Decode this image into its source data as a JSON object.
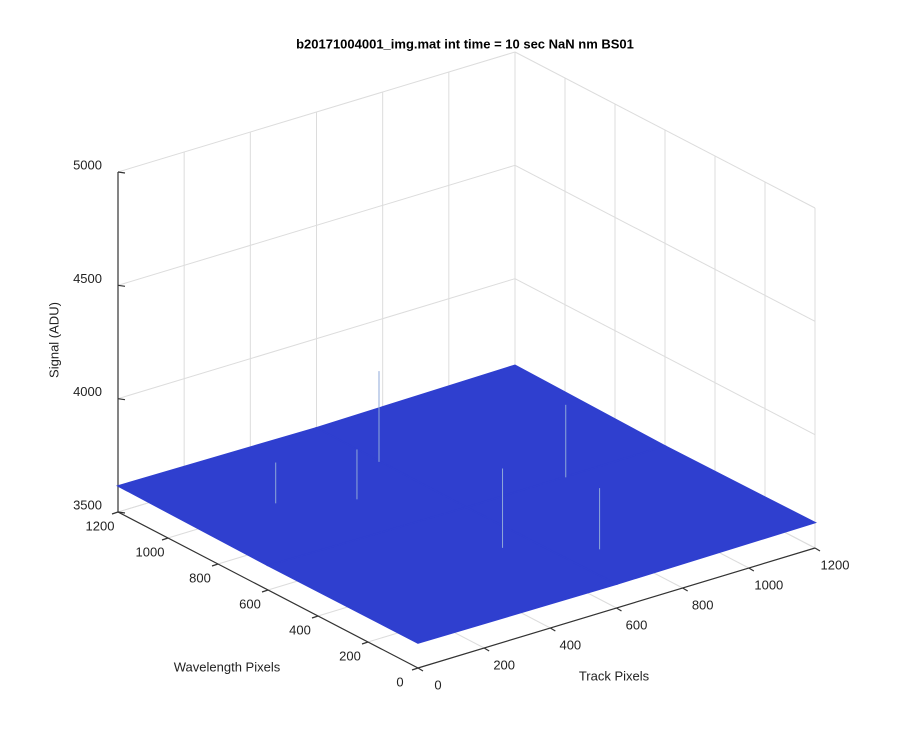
{
  "chart_data": {
    "type": "surface",
    "title": "b20171004001_img.mat int time = 10 sec  NaN nm BS01",
    "xlabel": "Track Pixels",
    "ylabel": "Wavelength Pixels",
    "zlabel": "Signal (ADU)",
    "x": [
      0,
      600,
      1200
    ],
    "y": [
      0,
      600,
      1200
    ],
    "z": [
      [
        3610,
        3605,
        3612
      ],
      [
        3608,
        3600,
        3606
      ],
      [
        3615,
        3607,
        3618
      ]
    ],
    "spikes": {
      "x": [
        250,
        420,
        520,
        600,
        900,
        700
      ],
      "y": [
        900,
        800,
        350,
        950,
        600,
        200
      ],
      "z": [
        3780,
        3820,
        3950,
        4000,
        3920,
        3870
      ]
    },
    "color": "#2f3fcf",
    "xlim": [
      0,
      1200
    ],
    "ylim": [
      0,
      1200
    ],
    "zlim": [
      3500,
      5000
    ],
    "xticks": [
      0,
      200,
      400,
      600,
      800,
      1000,
      1200
    ],
    "yticks": [
      0,
      200,
      400,
      600,
      800,
      1000,
      1200
    ],
    "zticks": [
      3500,
      4000,
      4500,
      5000
    ],
    "grid": true
  }
}
